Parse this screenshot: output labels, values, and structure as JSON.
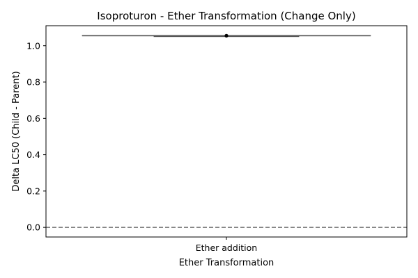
{
  "chart_data": {
    "type": "box",
    "title": "Isoproturon - Ether Transformation (Change Only)",
    "xlabel": "Ether Transformation",
    "ylabel": "Delta LC50 (Child - Parent)",
    "categories": [
      "Ether addition"
    ],
    "series": [
      {
        "category": "Ether addition",
        "min": 1.055,
        "q1": 1.055,
        "median": 1.055,
        "q3": 1.055,
        "max": 1.055,
        "points": [
          1.055
        ]
      }
    ],
    "yticks": [
      0.0,
      0.2,
      0.4,
      0.6,
      0.8,
      1.0
    ],
    "ytick_labels": [
      "0.0",
      "0.2",
      "0.4",
      "0.6",
      "0.8",
      "1.0"
    ],
    "ylim": [
      -0.053,
      1.11
    ],
    "reference_line": {
      "y": 0,
      "style": "dashed",
      "color": "#808080"
    },
    "grid": false,
    "colors": {
      "box": "#555555",
      "point": "#000000"
    }
  }
}
